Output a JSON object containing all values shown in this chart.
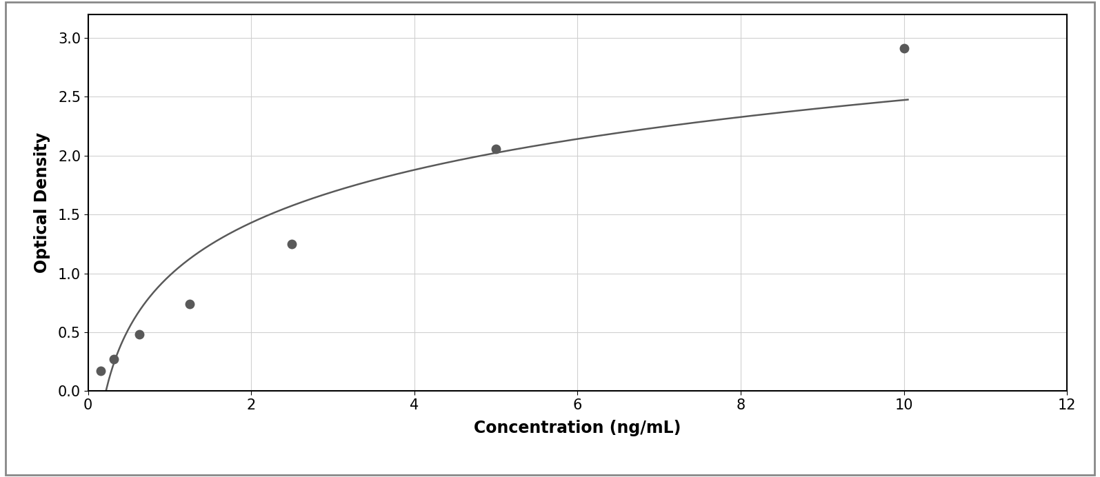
{
  "x_data": [
    0.156,
    0.313,
    0.625,
    1.25,
    2.5,
    5.0,
    10.0
  ],
  "y_data": [
    0.17,
    0.27,
    0.48,
    0.74,
    1.25,
    2.06,
    2.91
  ],
  "xlabel": "Concentration (ng/mL)",
  "ylabel": "Optical Density",
  "xlim": [
    0,
    12
  ],
  "ylim": [
    0,
    3.2
  ],
  "xticks": [
    0,
    2,
    4,
    6,
    8,
    10,
    12
  ],
  "yticks": [
    0,
    0.5,
    1.0,
    1.5,
    2.0,
    2.5,
    3.0
  ],
  "marker_color": "#595959",
  "line_color": "#595959",
  "grid_color": "#d0d0d0",
  "background_color": "#ffffff",
  "plot_bg_color": "#ffffff",
  "border_color": "#000000",
  "outer_border_color": "#888888",
  "xlabel_fontsize": 17,
  "ylabel_fontsize": 17,
  "tick_fontsize": 15,
  "marker_size": 9,
  "line_width": 1.8,
  "fig_width": 15.95,
  "fig_height": 6.92,
  "curve_x_end": 10.05
}
